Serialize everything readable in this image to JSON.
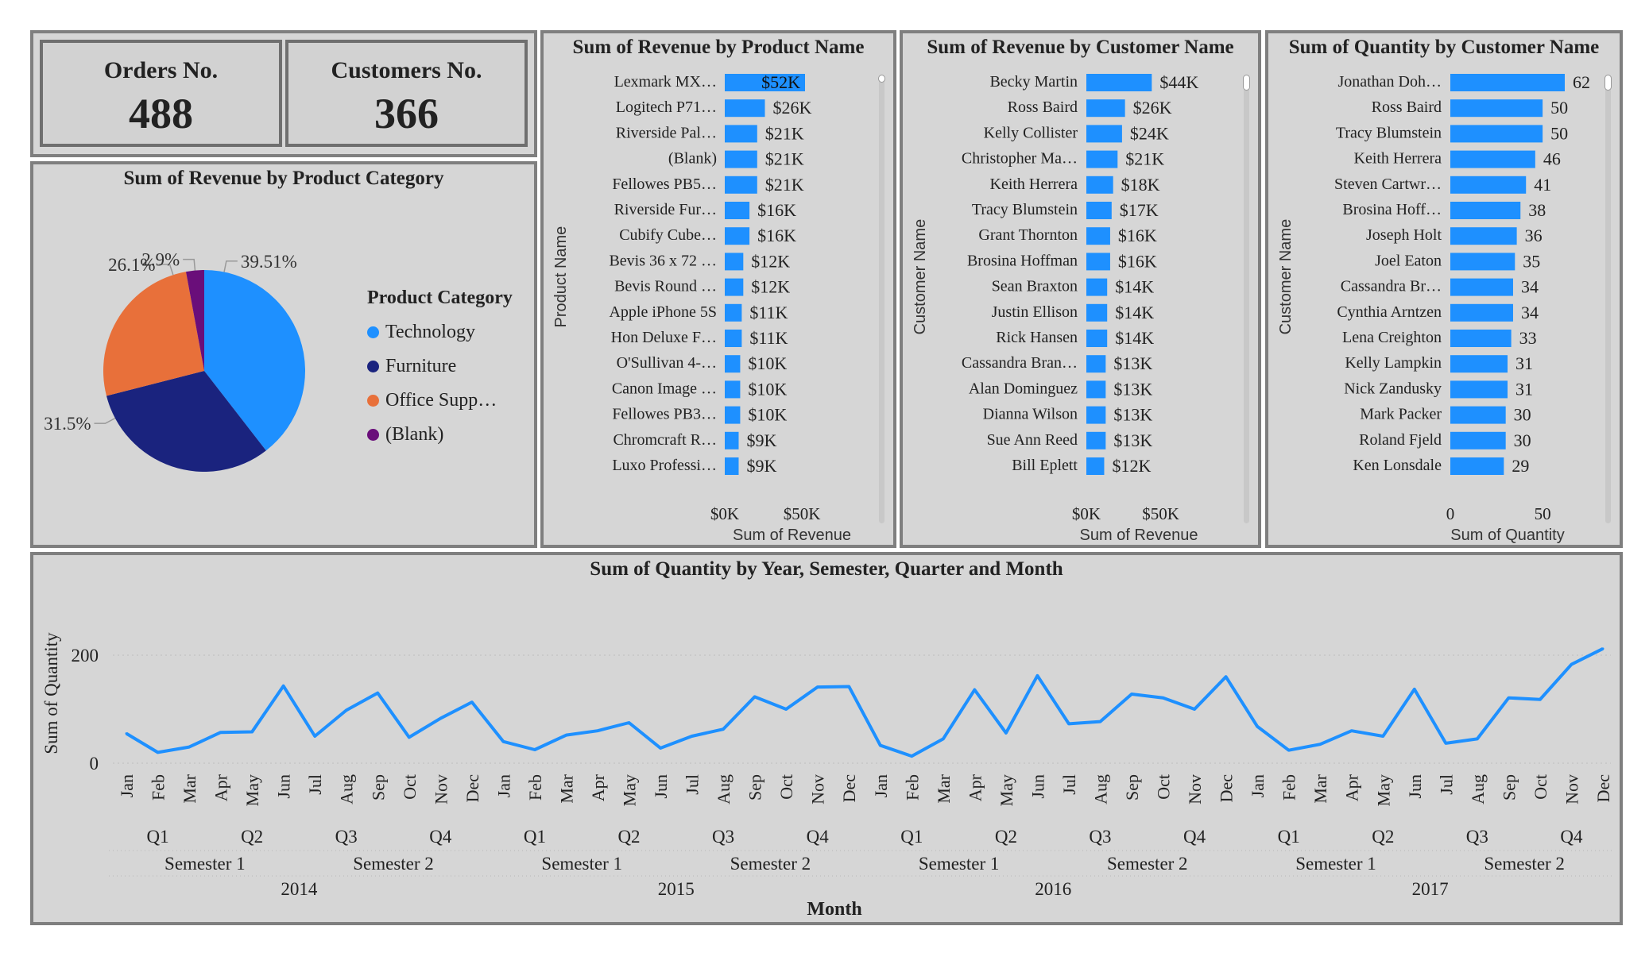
{
  "kpis": {
    "orders": {
      "label": "Orders No.",
      "value": "488"
    },
    "customers": {
      "label": "Customers No.",
      "value": "366"
    }
  },
  "colors": {
    "bar": "#1e90ff",
    "technology": "#1e90ff",
    "furniture": "#1a237e",
    "office": "#e8703a",
    "blank": "#6a0e7a",
    "panel_bg": "#d6d6d6"
  },
  "chart_data": [
    {
      "id": "pie",
      "type": "pie",
      "title": "Sum of Revenue by Product Category",
      "legend_title": "Product Category",
      "legend_position": "right",
      "slices": [
        {
          "label": "Technology",
          "legend": "Technology",
          "value": 39.51,
          "text": "39.51%"
        },
        {
          "label": "Furniture",
          "legend": "Furniture",
          "value": 31.5,
          "text": "31.5%"
        },
        {
          "label": "Office Supplies",
          "legend": "Office Supp…",
          "value": 26.1,
          "text": "26.1%"
        },
        {
          "label": "(Blank)",
          "legend": "(Blank)",
          "value": 2.9,
          "text": "2.9%"
        }
      ]
    },
    {
      "id": "products",
      "type": "bar",
      "orientation": "horizontal",
      "title": "Sum of Revenue by Product Name",
      "xlabel": "Sum of Revenue",
      "ylabel": "Product Name",
      "xlim": [
        0,
        52
      ],
      "xticks": [
        "$0K",
        "$50K"
      ],
      "categories": [
        "Lexmark MX…",
        "Logitech P71…",
        "Riverside Pal…",
        "(Blank)",
        "Fellowes PB5…",
        "Riverside Fur…",
        "Cubify Cube…",
        "Bevis 36 x 72 …",
        "Bevis Round …",
        "Apple iPhone 5S",
        "Hon Deluxe F…",
        "O'Sullivan 4-…",
        "Canon Image …",
        "Fellowes PB3…",
        "Chromcraft R…",
        "Luxo Professi…"
      ],
      "values": [
        52,
        26,
        21,
        21,
        21,
        16,
        16,
        12,
        12,
        11,
        11,
        10,
        10,
        10,
        9,
        9
      ],
      "labels": [
        "$52K",
        "$26K",
        "$21K",
        "$21K",
        "$21K",
        "$16K",
        "$16K",
        "$12K",
        "$12K",
        "$11K",
        "$11K",
        "$10K",
        "$10K",
        "$10K",
        "$9K",
        "$9K"
      ]
    },
    {
      "id": "customers_rev",
      "type": "bar",
      "orientation": "horizontal",
      "title": "Sum of Revenue by Customer Name",
      "xlabel": "Sum of Revenue",
      "ylabel": "Customer Name",
      "xlim": [
        0,
        62
      ],
      "xticks": [
        "$0K",
        "$50K"
      ],
      "categories": [
        "Becky Martin",
        "Ross Baird",
        "Kelly Collister",
        "Christopher Ma…",
        "Keith Herrera",
        "Tracy Blumstein",
        "Grant Thornton",
        "Brosina Hoffman",
        "Sean Braxton",
        "Justin Ellison",
        "Rick Hansen",
        "Cassandra Bran…",
        "Alan Dominguez",
        "Dianna Wilson",
        "Sue Ann Reed",
        "Bill Eplett"
      ],
      "values": [
        44,
        26,
        24,
        21,
        18,
        17,
        16,
        16,
        14,
        14,
        14,
        13,
        13,
        13,
        13,
        12
      ],
      "labels": [
        "$44K",
        "$26K",
        "$24K",
        "$21K",
        "$18K",
        "$17K",
        "$16K",
        "$16K",
        "$14K",
        "$14K",
        "$14K",
        "$13K",
        "$13K",
        "$13K",
        "$13K",
        "$12K"
      ]
    },
    {
      "id": "customers_qty",
      "type": "bar",
      "orientation": "horizontal",
      "title": "Sum of Quantity by Customer Name",
      "xlabel": "Sum of Quantity",
      "ylabel": "Customer Name",
      "xlim": [
        0,
        62
      ],
      "xticks": [
        "0",
        "50"
      ],
      "categories": [
        "Jonathan Doh…",
        "Ross Baird",
        "Tracy Blumstein",
        "Keith Herrera",
        "Steven Cartwr…",
        "Brosina Hoff…",
        "Joseph Holt",
        "Joel Eaton",
        "Cassandra Br…",
        "Cynthia Arntzen",
        "Lena Creighton",
        "Kelly Lampkin",
        "Nick Zandusky",
        "Mark Packer",
        "Roland Fjeld",
        "Ken Lonsdale"
      ],
      "values": [
        62,
        50,
        50,
        46,
        41,
        38,
        36,
        35,
        34,
        34,
        33,
        31,
        31,
        30,
        30,
        29
      ],
      "labels": [
        "62",
        "50",
        "50",
        "46",
        "41",
        "38",
        "36",
        "35",
        "34",
        "34",
        "33",
        "31",
        "31",
        "30",
        "30",
        "29"
      ]
    },
    {
      "id": "timeline",
      "type": "line",
      "title": "Sum of Quantity by Year, Semester, Quarter and Month",
      "xlabel": "Month",
      "ylabel": "Sum of Quantity",
      "ylim": [
        0,
        200
      ],
      "yticks": [
        "0",
        "200"
      ],
      "months": [
        "Jan",
        "Feb",
        "Mar",
        "Apr",
        "May",
        "Jun",
        "Jul",
        "Aug",
        "Sep",
        "Oct",
        "Nov",
        "Dec"
      ],
      "quarters": [
        "Q1",
        "Q2",
        "Q3",
        "Q4"
      ],
      "semesters": [
        "Semester 1",
        "Semester 2"
      ],
      "years": [
        "2014",
        "2015",
        "2016",
        "2017"
      ],
      "values": [
        55,
        20,
        30,
        57,
        58,
        143,
        50,
        98,
        130,
        48,
        83,
        113,
        40,
        25,
        52,
        60,
        75,
        28,
        50,
        63,
        123,
        100,
        141,
        142,
        33,
        13,
        45,
        136,
        56,
        162,
        73,
        77,
        128,
        121,
        100,
        160,
        68,
        24,
        35,
        60,
        50,
        137,
        37,
        45,
        121,
        118,
        183,
        212
      ]
    }
  ]
}
